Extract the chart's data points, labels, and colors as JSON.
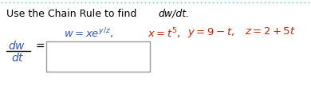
{
  "dot_color": "#5BC8F5",
  "bg_color": "#ffffff",
  "title_color": "#000000",
  "blue_color": "#3355BB",
  "red_color": "#CC2200",
  "border_color": "#999999",
  "title_regular": "Use the Chain Rule to find ",
  "title_italic": "dw/dt.",
  "eq_blue": "$w = xe^{y/z},$",
  "eq_x": "$x = t^5,$",
  "eq_y": "$y = 9 - t,$",
  "eq_z": "$z = 2 + 5t$",
  "lhs_num": "$dw$",
  "lhs_den": "$dt$",
  "equal": "$=$"
}
